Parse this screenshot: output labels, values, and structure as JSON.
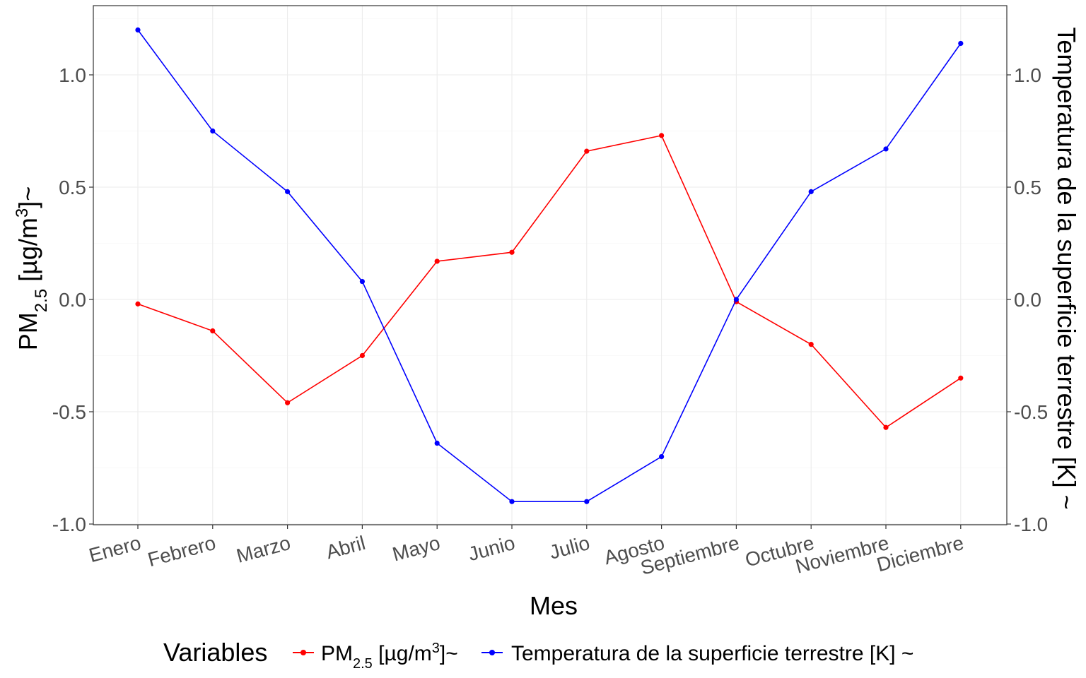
{
  "chart_data": {
    "type": "line",
    "categories": [
      "Enero",
      "Febrero",
      "Marzo",
      "Abril",
      "Mayo",
      "Junio",
      "Julio",
      "Agosto",
      "Septiembre",
      "Octubre",
      "Noviembre",
      "Diciembre"
    ],
    "series": [
      {
        "name": "PM2.5 [µg/m3]~",
        "color": "#ff0000",
        "values": [
          -0.02,
          -0.14,
          -0.46,
          -0.25,
          0.17,
          0.21,
          0.66,
          0.73,
          -0.01,
          -0.2,
          -0.57,
          -0.35
        ]
      },
      {
        "name": "Temperatura de la superficie terrestre [K] ~",
        "color": "#0000ff",
        "values": [
          1.2,
          0.75,
          0.48,
          0.08,
          -0.64,
          -0.9,
          -0.9,
          -0.7,
          0.0,
          0.48,
          0.67,
          1.14
        ]
      }
    ],
    "ylim": [
      -1.0,
      1.3
    ],
    "yticks": [
      "-1.0",
      "-0.5",
      "0.0",
      "0.5",
      "1.0"
    ],
    "ytick_values": [
      -1.0,
      -0.5,
      0.0,
      0.5,
      1.0
    ],
    "xlabel": "Mes",
    "ylabel_left": {
      "base": "PM",
      "sub": "2.5",
      "unit": " [µg/m",
      "sup": "3",
      "end": "]~"
    },
    "ylabel_right": "Temperatura de la superficie terrestre [K] ~",
    "legend": {
      "title": "Variables",
      "items": [
        {
          "base": "PM",
          "sub": "2.5",
          "unit": " [µg/m",
          "sup": "3",
          "end": "]~",
          "color": "#ff0000"
        },
        {
          "text": "Temperatura de la superficie terrestre [K] ~",
          "color": "#0000ff"
        }
      ],
      "position": "bottom"
    }
  }
}
